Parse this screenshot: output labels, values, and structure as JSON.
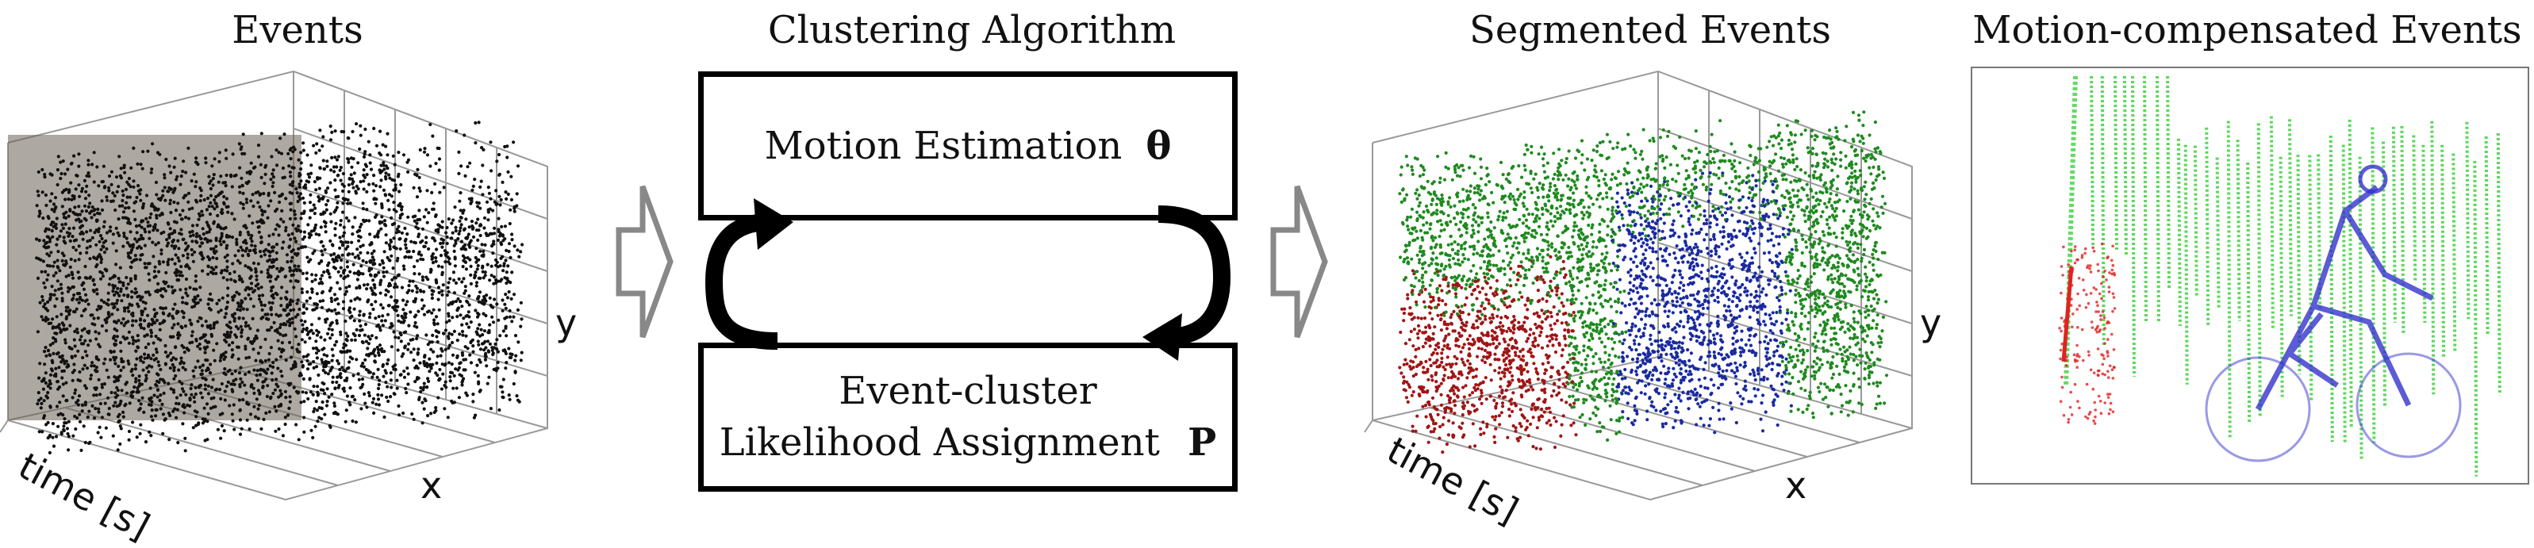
{
  "panels": {
    "events": {
      "title": "Events",
      "x_label": "x",
      "y_label": "y",
      "t_label": "time [s]"
    },
    "algorithm": {
      "title": "Clustering Algorithm",
      "box_motion_label": "Motion Estimation",
      "box_motion_symbol": "θ",
      "box_assign_line1": "Event-cluster",
      "box_assign_line2": "Likelihood Assignment",
      "box_assign_symbol": "P"
    },
    "segmented": {
      "title": "Segmented Events",
      "x_label": "x",
      "y_label": "y",
      "t_label": "time [s]"
    },
    "compensated": {
      "title": "Motion-compensated Events"
    }
  },
  "colors": {
    "events_black": "#111111",
    "cluster_green": "#1f8a1f",
    "cluster_red": "#a01515",
    "cluster_blue": "#1a2aa0",
    "comp_green": "#22cc22",
    "comp_red": "#e02222",
    "comp_blue": "#3333cc",
    "arrow_outline": "#888888"
  }
}
